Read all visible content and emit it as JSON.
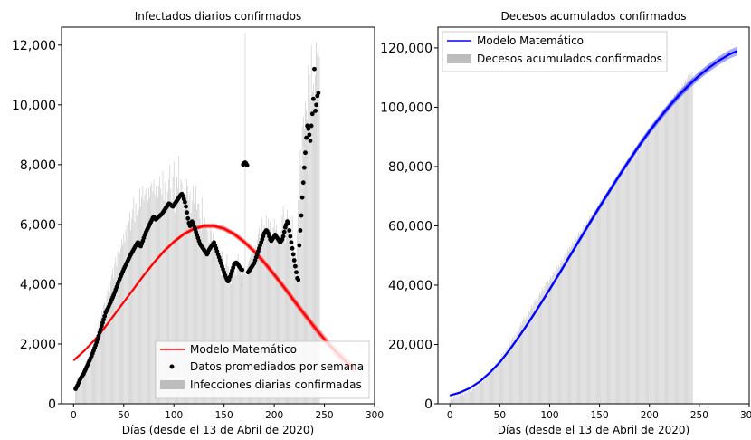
{
  "chart_data": [
    {
      "type": "bar",
      "title": "Infectados diarios confirmados",
      "xlabel": "Días (desde el 13 de Abril de 2020)",
      "ylabel": "",
      "xlim": [
        -12,
        300
      ],
      "ylim": [
        0,
        12600
      ],
      "x_ticks": [
        0,
        50,
        100,
        150,
        200,
        250,
        300
      ],
      "y_ticks": [
        0,
        2000,
        4000,
        6000,
        8000,
        10000,
        12000
      ],
      "x_tick_labels": [
        "0",
        "50",
        "100",
        "150",
        "200",
        "250",
        "300"
      ],
      "y_tick_labels": [
        "0",
        "2,000",
        "4,000",
        "6,000",
        "8,000",
        "10,000",
        "12,000"
      ],
      "grid": false,
      "legend_position": "bottom-right",
      "legend": [
        {
          "label": "Modelo Matemático",
          "kind": "line",
          "color": "#ff0000"
        },
        {
          "label": "Datos promediados por semana",
          "kind": "dot",
          "color": "#000000"
        },
        {
          "label": "Infecciones diarias confirmadas",
          "kind": "bar",
          "color": "#bdbdbd"
        }
      ],
      "series": [
        {
          "name": "Infecciones diarias confirmadas",
          "kind": "bar",
          "x_start": 2,
          "values": [
            500,
            600,
            700,
            800,
            900,
            1000,
            950,
            1100,
            1200,
            1300,
            1150,
            1400,
            1500,
            1600,
            1700,
            1400,
            1800,
            1900,
            2000,
            2200,
            2100,
            2300,
            2500,
            2700,
            2600,
            2900,
            3100,
            3000,
            3300,
            3400,
            3200,
            3600,
            3800,
            4000,
            3700,
            4100,
            4300,
            4500,
            4200,
            4700,
            4900,
            4600,
            5100,
            5300,
            5000,
            5200,
            5500,
            5300,
            5700,
            5400,
            5800,
            6000,
            5500,
            6100,
            6400,
            5800,
            6200,
            6500,
            6900,
            6100,
            6700,
            6300,
            7000,
            6500,
            7200,
            6600,
            6900,
            7300,
            6800,
            7000,
            7200,
            7100,
            6800,
            7200,
            6900,
            7300,
            7400,
            7100,
            7500,
            7000,
            7300,
            7200,
            6900,
            7300,
            7600,
            7200,
            7000,
            7800,
            6800,
            7400,
            7200,
            6700,
            7100,
            7500,
            8000,
            7200,
            6800,
            7600,
            8100,
            6400,
            7700,
            7600,
            7200,
            8300,
            6900,
            7500,
            7400,
            7000,
            6500,
            7200,
            7000,
            7500,
            7300,
            6800,
            7100,
            6400,
            6800,
            7300,
            6700,
            6300,
            7300,
            6500,
            6700,
            6700,
            6200,
            5800,
            6900,
            6000,
            6600,
            6200,
            5900,
            6000,
            5800,
            5400,
            5900,
            5800,
            5400,
            5700,
            5200,
            5400,
            5000,
            4900,
            5400,
            4800,
            4700,
            4300,
            5100,
            4500,
            4600,
            4400,
            4700,
            5000,
            4600,
            4200,
            4500,
            4000,
            4700,
            4600,
            4400,
            4800,
            4300,
            4800,
            5000,
            4500,
            4700,
            4300,
            4000,
            4400,
            4600,
            12400,
            4300,
            4600,
            4700,
            4800,
            4900,
            5000,
            4700,
            5100,
            5000,
            5300,
            5200,
            5500,
            5700,
            5900,
            5400,
            6000,
            6200,
            5800,
            6000,
            5800,
            6300,
            5900,
            6200,
            5800,
            6100,
            5700,
            5400,
            5900,
            6200,
            5800,
            6000,
            5700,
            5500,
            5600,
            6000,
            5800,
            6300,
            6600,
            6000,
            5400,
            6100,
            6500,
            6200,
            5800,
            5600,
            4900,
            6300,
            5400,
            4600,
            5000,
            4100,
            5800,
            6800,
            7500,
            8500,
            8000,
            9300,
            9600,
            9200,
            10100,
            9800,
            9500,
            11300,
            11000,
            10200,
            12000,
            10400,
            10700,
            10300,
            11000,
            12100,
            11700,
            11900,
            11600
          ]
        },
        {
          "name": "Datos promediados por semana",
          "kind": "scatter",
          "x_start": 2,
          "values": [
            500,
            560,
            620,
            700,
            780,
            850,
            900,
            950,
            1000,
            1080,
            1150,
            1220,
            1300,
            1380,
            1450,
            1520,
            1600,
            1690,
            1780,
            1870,
            1960,
            2060,
            2160,
            2270,
            2380,
            2490,
            2600,
            2710,
            2820,
            2930,
            3050,
            3120,
            3180,
            3250,
            3330,
            3400,
            3480,
            3560,
            3640,
            3730,
            3820,
            3910,
            4000,
            4090,
            4180,
            4260,
            4340,
            4420,
            4500,
            4570,
            4640,
            4710,
            4780,
            4850,
            4920,
            4990,
            5050,
            5110,
            5170,
            5230,
            5290,
            5350,
            5400,
            5380,
            5300,
            5270,
            5350,
            5450,
            5550,
            5650,
            5730,
            5800,
            5870,
            5940,
            6010,
            6080,
            6150,
            6220,
            6250,
            6200,
            6170,
            6200,
            6230,
            6260,
            6290,
            6320,
            6350,
            6400,
            6450,
            6500,
            6550,
            6600,
            6650,
            6700,
            6680,
            6650,
            6620,
            6600,
            6650,
            6700,
            6750,
            6800,
            6850,
            6900,
            6950,
            7000,
            7020,
            6950,
            6850,
            6750,
            6600,
            6400,
            6200,
            6050,
            5950,
            6000,
            6100,
            6050,
            5950,
            5850,
            5750,
            5650,
            5550,
            5450,
            5350,
            5300,
            5250,
            5200,
            5150,
            5100,
            5050,
            5000,
            5050,
            5150,
            5200,
            5250,
            5300,
            5350,
            5400,
            5300,
            5200,
            5100,
            5000,
            4900,
            4800,
            4700,
            4600,
            4500,
            4400,
            4300,
            4220,
            4150,
            4100,
            4150,
            4250,
            4350,
            4450,
            4550,
            4650,
            4700,
            4720,
            4700,
            4650,
            4600,
            4550,
            4500,
            4480,
            8000,
            8050,
            8070,
            8040,
            7980,
            4400,
            4450,
            4500,
            4550,
            4600,
            4650,
            4700,
            4800,
            4900,
            5000,
            5100,
            5200,
            5300,
            5400,
            5500,
            5600,
            5700,
            5750,
            5800,
            5780,
            5700,
            5600,
            5500,
            5450,
            5500,
            5550,
            5600,
            5650,
            5600,
            5550,
            5500,
            5450,
            5400,
            5450,
            5500,
            5600,
            5750,
            5900,
            6000,
            6100,
            6050,
            5800,
            5600,
            5400,
            5200,
            5000,
            4800,
            4600,
            4400,
            4200,
            4150,
            5300,
            5800,
            6300,
            6900,
            7400,
            7900,
            8400,
            8900,
            9300,
            9200,
            9000,
            8800,
            9300,
            9700,
            10200,
            11200,
            9800,
            10000,
            10300,
            10400
          ]
        },
        {
          "name": "Modelo Matemático",
          "kind": "line",
          "color": "#ff0000",
          "x": [
            0,
            10,
            20,
            30,
            40,
            50,
            60,
            70,
            80,
            90,
            100,
            110,
            120,
            130,
            140,
            150,
            160,
            170,
            180,
            190,
            200,
            210,
            220,
            230,
            240,
            250,
            260,
            270,
            280
          ],
          "y": [
            1450,
            1750,
            2100,
            2500,
            2950,
            3400,
            3850,
            4300,
            4720,
            5100,
            5420,
            5680,
            5860,
            5950,
            5950,
            5860,
            5680,
            5420,
            5100,
            4730,
            4320,
            3890,
            3440,
            3000,
            2570,
            2160,
            1790,
            1460,
            1170
          ]
        }
      ]
    },
    {
      "type": "bar",
      "title": "Decesos acumulados confirmados",
      "xlabel": "Días (desde el 13 de Abril de 2020)",
      "ylabel": "",
      "xlim": [
        -12,
        300
      ],
      "ylim": [
        0,
        127000
      ],
      "x_ticks": [
        0,
        50,
        100,
        150,
        200,
        250,
        300
      ],
      "y_ticks": [
        0,
        20000,
        40000,
        60000,
        80000,
        100000,
        120000
      ],
      "x_tick_labels": [
        "0",
        "50",
        "100",
        "150",
        "200",
        "250",
        "300"
      ],
      "y_tick_labels": [
        "0",
        "20,000",
        "40,000",
        "60,000",
        "80,000",
        "100,000",
        "120,000"
      ],
      "grid": false,
      "legend_position": "top-left",
      "legend": [
        {
          "label": "Modelo Matemático",
          "kind": "line",
          "color": "#0000ff"
        },
        {
          "label": "Decesos acumulados confirmados",
          "kind": "bar",
          "color": "#bdbdbd"
        }
      ],
      "series": [
        {
          "name": "Decesos acumulados confirmados",
          "kind": "bar",
          "x": [
            0,
            10,
            20,
            30,
            40,
            50,
            60,
            70,
            80,
            90,
            100,
            110,
            120,
            130,
            140,
            150,
            160,
            170,
            180,
            190,
            200,
            210,
            220,
            230,
            240,
            243
          ],
          "y": [
            2000,
            3000,
            4500,
            7000,
            10500,
            15000,
            20000,
            26000,
            31500,
            37000,
            42000,
            47000,
            52500,
            57500,
            62500,
            67500,
            72000,
            76500,
            81000,
            86000,
            91000,
            96000,
            101000,
            106000,
            110500,
            112000
          ]
        },
        {
          "name": "Modelo Matemático",
          "kind": "line",
          "color": "#0000ff",
          "x": [
            0,
            10,
            20,
            30,
            40,
            50,
            60,
            70,
            80,
            90,
            100,
            110,
            120,
            130,
            140,
            150,
            160,
            170,
            180,
            190,
            200,
            210,
            220,
            230,
            240,
            250,
            260,
            270,
            280,
            288
          ],
          "y": [
            2800,
            3800,
            5300,
            7500,
            10500,
            14000,
            18300,
            23000,
            28000,
            33200,
            38600,
            44100,
            49700,
            55300,
            60900,
            66400,
            71800,
            77100,
            82200,
            87200,
            91900,
            96300,
            100400,
            104200,
            107600,
            110700,
            113400,
            115800,
            117800,
            119000
          ]
        }
      ]
    }
  ]
}
